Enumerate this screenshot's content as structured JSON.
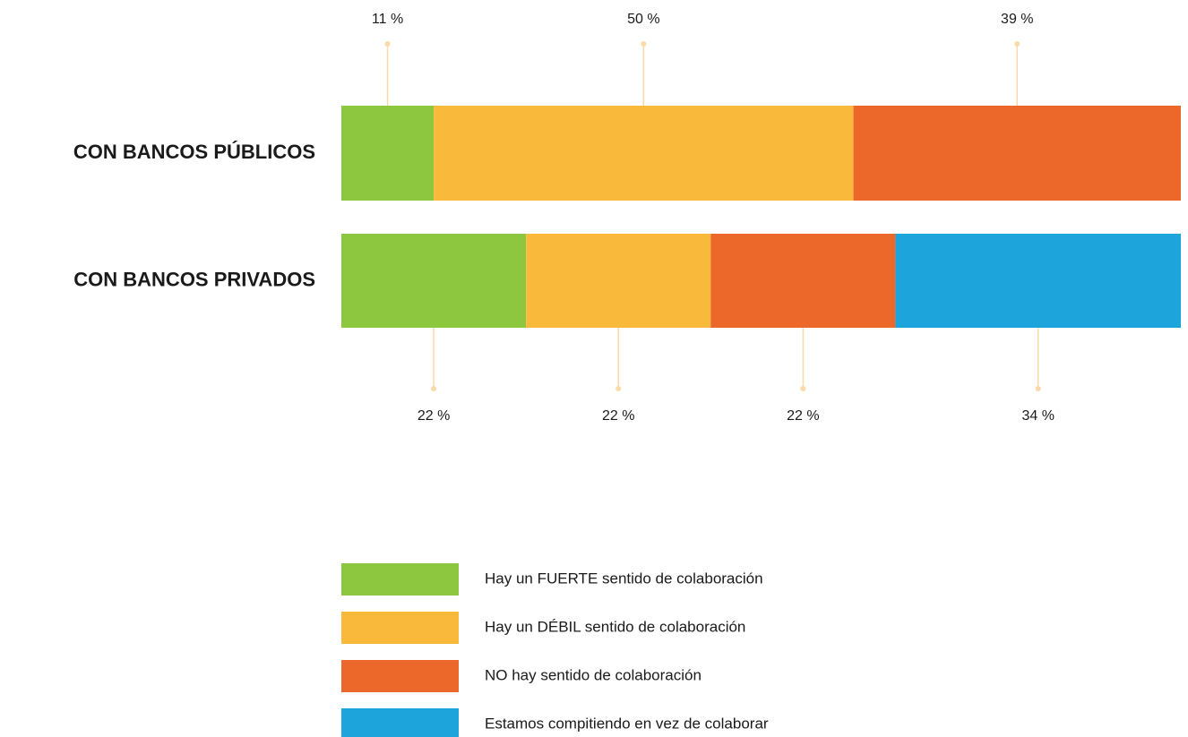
{
  "chart_data": {
    "type": "stacked-bar-horizontal",
    "categories": [
      "CON BANCOS PÚBLICOS",
      "CON BANCOS PRIVADOS"
    ],
    "xlim": [
      0,
      100
    ],
    "series": [
      {
        "name": "Hay un FUERTE sentido de colaboración",
        "color": "#8dc63f",
        "values": [
          11,
          22
        ],
        "value_labels": [
          "11 %",
          "22 %"
        ]
      },
      {
        "name": "Hay un DÉBIL sentido de colaboración",
        "color": "#f9b93b",
        "values": [
          50,
          22
        ],
        "value_labels": [
          "50 %",
          "22 %"
        ]
      },
      {
        "name": "NO hay sentido de colaboración",
        "color": "#ec672a",
        "values": [
          39,
          22
        ],
        "value_labels": [
          "39 %",
          "22 %"
        ]
      },
      {
        "name": "Estamos compitiendo en vez de colaborar",
        "color": "#1ca4db",
        "values": [
          null,
          34
        ],
        "value_labels": [
          null,
          "34 %"
        ]
      }
    ]
  }
}
